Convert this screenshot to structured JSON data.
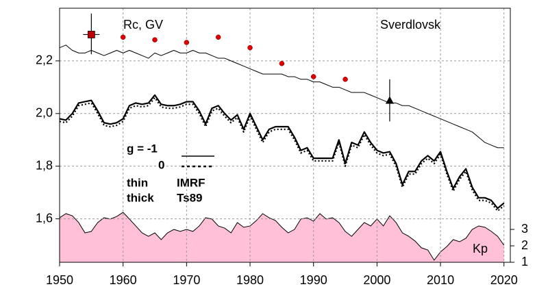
{
  "chart_data": {
    "type": "line",
    "station": "Sverdlovsk",
    "ylabel": "Rc, GV",
    "y2label": "Kp",
    "legend": {
      "g_solid": "g  = -1",
      "g_dotted": "0",
      "thin": "thin",
      "thin_model": "IMRF",
      "thick": "thick",
      "thick_model": "Ts89"
    },
    "xlim": [
      1950,
      2021
    ],
    "xticks": [
      1950,
      1960,
      1970,
      1980,
      1990,
      2000,
      2010,
      2020
    ],
    "ylim": [
      1.435,
      2.4
    ],
    "yticks": [
      {
        "value": 1.6,
        "label": "1,6"
      },
      {
        "value": 1.8,
        "label": "1,8"
      },
      {
        "value": 2.0,
        "label": "2,0"
      },
      {
        "value": 2.2,
        "label": "2,2"
      }
    ],
    "y2lim": [
      1,
      16.46
    ],
    "y2ticks": [
      1,
      2,
      3
    ],
    "grid": true,
    "x": [
      1950,
      1951,
      1952,
      1953,
      1954,
      1955,
      1956,
      1957,
      1958,
      1959,
      1960,
      1961,
      1962,
      1963,
      1964,
      1965,
      1966,
      1967,
      1968,
      1969,
      1970,
      1971,
      1972,
      1973,
      1974,
      1975,
      1976,
      1977,
      1978,
      1979,
      1980,
      1981,
      1982,
      1983,
      1984,
      1985,
      1986,
      1987,
      1988,
      1989,
      1990,
      1991,
      1992,
      1993,
      1994,
      1995,
      1996,
      1997,
      1998,
      1999,
      2000,
      2001,
      2002,
      2003,
      2004,
      2005,
      2006,
      2007,
      2008,
      2009,
      2010,
      2011,
      2012,
      2013,
      2014,
      2015,
      2016,
      2017,
      2018,
      2019,
      2020
    ],
    "series": [
      {
        "color": "#000000",
        "width": 1,
        "dash": "none",
        "values": [
          2.25,
          2.26,
          2.24,
          2.23,
          2.23,
          2.24,
          2.23,
          2.22,
          2.23,
          2.24,
          2.23,
          2.24,
          2.23,
          2.22,
          2.21,
          2.23,
          2.22,
          2.23,
          2.24,
          2.23,
          2.23,
          2.24,
          2.23,
          2.23,
          2.22,
          2.21,
          2.21,
          2.2,
          2.19,
          2.18,
          2.17,
          2.16,
          2.15,
          2.15,
          2.15,
          2.15,
          2.14,
          2.14,
          2.13,
          2.13,
          2.12,
          2.12,
          2.11,
          2.1,
          2.1,
          2.09,
          2.08,
          2.08,
          2.08,
          2.07,
          2.06,
          2.05,
          2.04,
          2.04,
          2.03,
          2.03,
          2.02,
          2.01,
          2.0,
          1.99,
          1.98,
          1.97,
          1.96,
          1.95,
          1.94,
          1.93,
          1.91,
          1.89,
          1.88,
          1.87,
          1.87
        ]
      },
      {
        "color": "#000000",
        "width": 2.2,
        "dash": "none",
        "values": [
          1.98,
          1.975,
          2.0,
          2.04,
          2.045,
          2.05,
          2.01,
          1.965,
          1.96,
          1.965,
          1.98,
          2.03,
          2.04,
          2.035,
          2.04,
          2.07,
          2.035,
          2.03,
          2.03,
          2.035,
          2.045,
          2.045,
          2.01,
          1.96,
          2.02,
          2.03,
          2.0,
          1.975,
          1.995,
          1.94,
          2.0,
          1.95,
          1.9,
          1.94,
          1.95,
          1.95,
          1.95,
          1.91,
          1.86,
          1.87,
          1.83,
          1.83,
          1.83,
          1.83,
          1.9,
          1.81,
          1.89,
          1.88,
          1.93,
          1.89,
          1.86,
          1.85,
          1.855,
          1.81,
          1.73,
          1.78,
          1.78,
          1.82,
          1.84,
          1.82,
          1.855,
          1.78,
          1.715,
          1.76,
          1.79,
          1.72,
          1.68,
          1.68,
          1.67,
          1.64,
          1.66
        ]
      },
      {
        "color": "#000000",
        "width": 2.2,
        "dash": "2 3",
        "values": [
          1.97,
          1.965,
          1.99,
          2.03,
          2.035,
          2.04,
          2.0,
          1.955,
          1.95,
          1.955,
          1.97,
          2.02,
          2.03,
          2.025,
          2.03,
          2.06,
          2.025,
          2.02,
          2.02,
          2.025,
          2.035,
          2.035,
          2.0,
          1.95,
          2.01,
          2.02,
          1.99,
          1.965,
          1.985,
          1.93,
          1.99,
          1.94,
          1.89,
          1.93,
          1.94,
          1.94,
          1.94,
          1.9,
          1.85,
          1.86,
          1.82,
          1.82,
          1.82,
          1.82,
          1.89,
          1.8,
          1.88,
          1.87,
          1.92,
          1.88,
          1.85,
          1.84,
          1.845,
          1.8,
          1.72,
          1.77,
          1.77,
          1.81,
          1.83,
          1.81,
          1.845,
          1.77,
          1.705,
          1.75,
          1.78,
          1.71,
          1.67,
          1.67,
          1.66,
          1.63,
          1.65
        ]
      },
      {
        "axis": "y2",
        "type": "area",
        "color": "#ffc0d8",
        "values": [
          3.71,
          3.96,
          3.83,
          3.42,
          2.79,
          2.88,
          3.42,
          3.71,
          3.63,
          3.79,
          4.04,
          3.63,
          3.21,
          2.79,
          2.58,
          2.79,
          2.38,
          2.79,
          3.0,
          2.88,
          3.0,
          2.88,
          3.21,
          3.71,
          3.63,
          3.21,
          3.08,
          2.79,
          3.42,
          3.13,
          3.21,
          3.54,
          3.96,
          3.71,
          3.54,
          3.13,
          2.79,
          3.0,
          3.63,
          3.71,
          3.5,
          3.96,
          3.63,
          3.71,
          3.42,
          2.88,
          2.58,
          3.0,
          3.42,
          3.21,
          3.63,
          3.21,
          3.83,
          3.42,
          2.79,
          2.58,
          2.29,
          1.88,
          1.75,
          1.13,
          1.63,
          1.96,
          2.38,
          2.25,
          2.46,
          3.0,
          3.21,
          3.13,
          2.88,
          2.58,
          2.04
        ]
      }
    ],
    "dots": {
      "color": "#e00000",
      "x": [
        1960,
        1965,
        1970,
        1975,
        1980,
        1985,
        1990,
        1995
      ],
      "y": [
        2.29,
        2.28,
        2.27,
        2.29,
        2.25,
        2.19,
        2.14,
        2.13
      ]
    },
    "points": [
      {
        "marker": "square",
        "color": "#c00000",
        "x": 1955,
        "y": 2.3,
        "ylow": 2.225,
        "yhigh": 2.38
      },
      {
        "marker": "triangle",
        "color": "#000000",
        "x": 2002,
        "y": 2.05,
        "ylow": 1.97,
        "yhigh": 2.13
      }
    ]
  }
}
